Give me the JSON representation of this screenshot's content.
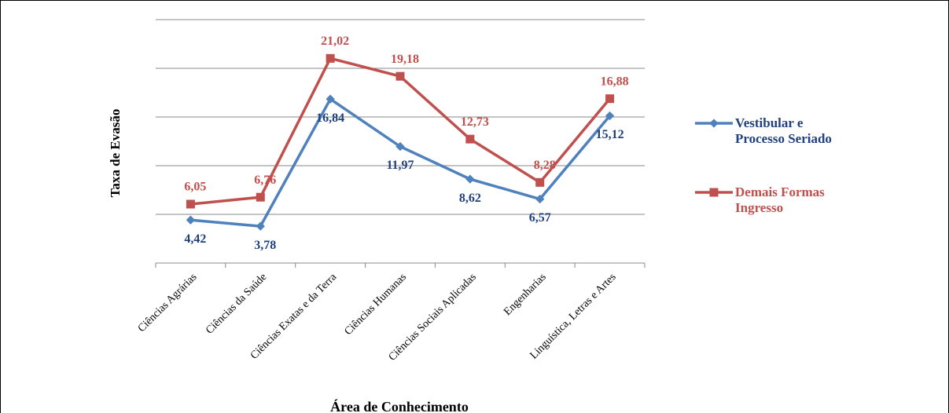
{
  "chart_data": {
    "type": "line",
    "y_label": "Taxa de Evasão",
    "x_label": "Área de Conhecimento",
    "categories": [
      "Ciências Agrárias",
      "Ciências da Saúde",
      "Ciências Exatas e da Terra",
      "Ciências Humanas",
      "Ciências Sociais Aplicadas",
      "Engenharias",
      "Linguística, Letras e Artes"
    ],
    "series": [
      {
        "name": "Vestibular e Processo Seriado",
        "color": "#4f81bd",
        "label_color": "#1f3f7f",
        "values": [
          4.42,
          3.78,
          16.84,
          11.97,
          8.62,
          6.57,
          15.12
        ],
        "value_labels": [
          "4,42",
          "3,78",
          "16,84",
          "11,97",
          "8,62",
          "6,57",
          "15,12"
        ]
      },
      {
        "name": "Demais Formas Ingresso",
        "color": "#c0504d",
        "label_color": "#c0504d",
        "values": [
          6.05,
          6.76,
          21.02,
          19.18,
          12.73,
          8.28,
          16.88
        ],
        "value_labels": [
          "6,05",
          "6,76",
          "21,02",
          "19,18",
          "12,73",
          "8,28",
          "16,88"
        ]
      }
    ],
    "ylim": [
      0,
      25
    ],
    "yticks": [
      0,
      5,
      10,
      15,
      20,
      25
    ],
    "grid": true,
    "ytick_labels": false,
    "legend": "right"
  }
}
